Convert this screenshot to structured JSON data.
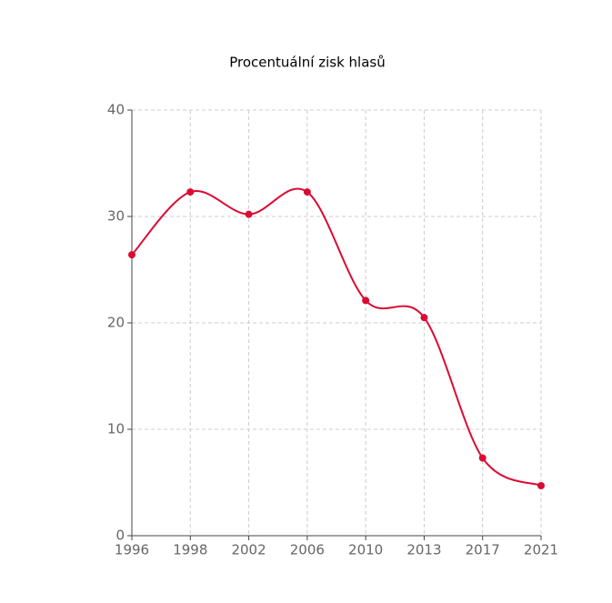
{
  "chart_data": {
    "type": "line",
    "title": "Procentuální zisk hlasů",
    "categories": [
      "1996",
      "1998",
      "2002",
      "2006",
      "2010",
      "2013",
      "2017",
      "2021"
    ],
    "values": [
      26.4,
      32.3,
      30.2,
      32.3,
      22.1,
      20.5,
      7.3,
      4.7
    ],
    "color": "#dc0a32",
    "smooth": true,
    "ylim": [
      0,
      40
    ],
    "yticks": [
      0,
      10,
      20,
      30,
      40
    ],
    "grid": true
  }
}
